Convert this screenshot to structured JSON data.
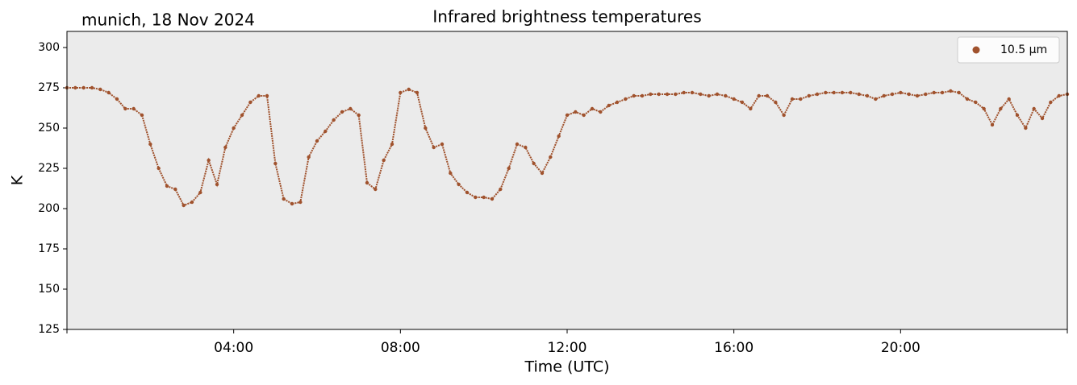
{
  "chart_data": {
    "type": "scatter",
    "title": "Infrared brightness temperatures",
    "subtitle": "munich, 18 Nov 2024",
    "x_label": "Time (UTC)",
    "y_label": "K",
    "xlim": [
      0,
      24
    ],
    "xticks": [
      {
        "value": 4,
        "label": "04:00"
      },
      {
        "value": 8,
        "label": "08:00"
      },
      {
        "value": 12,
        "label": "12:00"
      },
      {
        "value": 16,
        "label": "16:00"
      },
      {
        "value": 20,
        "label": "20:00"
      }
    ],
    "ylim": [
      125,
      310
    ],
    "yticks": [
      125,
      150,
      175,
      200,
      225,
      250,
      275,
      300
    ],
    "grid": false,
    "legend": "upper right",
    "background": "#ebebeb",
    "x": [
      0,
      0.2,
      0.4,
      0.6,
      0.8,
      1,
      1.2,
      1.4,
      1.6,
      1.8,
      2,
      2.2,
      2.4,
      2.6,
      2.8,
      3,
      3.2,
      3.4,
      3.6,
      3.8,
      4,
      4.2,
      4.4,
      4.6,
      4.8,
      5,
      5.2,
      5.4,
      5.6,
      5.8,
      6,
      6.2,
      6.4,
      6.6,
      6.8,
      7,
      7.2,
      7.4,
      7.6,
      7.8,
      8,
      8.2,
      8.4,
      8.6,
      8.8,
      9,
      9.2,
      9.4,
      9.6,
      9.8,
      10,
      10.2,
      10.4,
      10.6,
      10.8,
      11,
      11.2,
      11.4,
      11.6,
      11.8,
      12,
      12.2,
      12.4,
      12.6,
      12.8,
      13,
      13.2,
      13.4,
      13.6,
      13.8,
      14,
      14.2,
      14.4,
      14.6,
      14.8,
      15,
      15.2,
      15.4,
      15.6,
      15.8,
      16,
      16.2,
      16.4,
      16.6,
      16.8,
      17,
      17.2,
      17.4,
      17.6,
      17.8,
      18,
      18.2,
      18.4,
      18.6,
      18.8,
      19,
      19.2,
      19.4,
      19.6,
      19.8,
      20,
      20.2,
      20.4,
      20.6,
      20.8,
      21,
      21.2,
      21.4,
      21.6,
      21.8,
      22,
      22.2,
      22.4,
      22.6,
      22.8,
      23,
      23.2,
      23.4,
      23.6,
      23.8,
      24
    ],
    "series": [
      {
        "name": "10.5 µm",
        "color": "#a0522d",
        "values": [
          275,
          275,
          275,
          275,
          274,
          272,
          268,
          262,
          262,
          258,
          240,
          225,
          214,
          212,
          202,
          204,
          210,
          230,
          215,
          238,
          250,
          258,
          266,
          270,
          270,
          228,
          206,
          203,
          204,
          232,
          242,
          248,
          255,
          260,
          262,
          258,
          216,
          212,
          230,
          240,
          272,
          274,
          272,
          250,
          238,
          240,
          222,
          215,
          210,
          207,
          207,
          206,
          212,
          225,
          240,
          238,
          228,
          222,
          232,
          245,
          258,
          260,
          258,
          262,
          260,
          264,
          266,
          268,
          270,
          270,
          271,
          271,
          271,
          271,
          272,
          272,
          271,
          270,
          271,
          270,
          268,
          266,
          262,
          270,
          270,
          266,
          258,
          268,
          268,
          270,
          271,
          272,
          272,
          272,
          272,
          271,
          270,
          268,
          270,
          271,
          272,
          271,
          270,
          271,
          272,
          272,
          273,
          272,
          268,
          266,
          262,
          252,
          262,
          268,
          258,
          250,
          262,
          256,
          266,
          270,
          271
        ]
      }
    ]
  }
}
